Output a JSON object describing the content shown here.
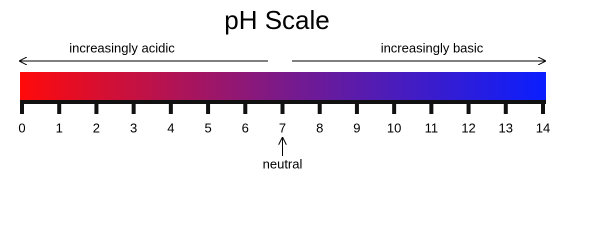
{
  "title": "pH Scale",
  "left_label": "increasingly acidic",
  "right_label": "increasingly basic",
  "ticks": [
    0,
    1,
    2,
    3,
    4,
    5,
    6,
    7,
    8,
    9,
    10,
    11,
    12,
    13,
    14
  ],
  "neutral": {
    "label": "neutral",
    "value": 7
  }
}
